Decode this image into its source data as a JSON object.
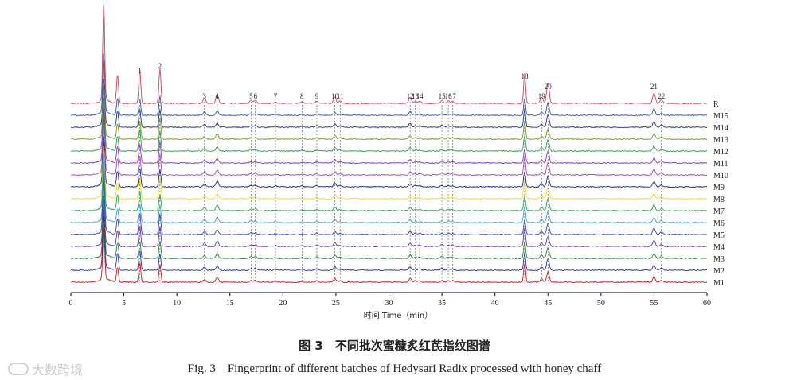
{
  "chart_data": {
    "type": "line",
    "subtype": "stacked chromatograms",
    "xlabel": "时间 Time（min）",
    "ylabel": "",
    "xlim": [
      0,
      60
    ],
    "xticks": [
      0,
      5,
      10,
      15,
      20,
      25,
      30,
      35,
      40,
      45,
      50,
      55,
      60
    ],
    "grid": false,
    "series": [
      {
        "name": "R",
        "color": "#d4405a"
      },
      {
        "name": "M15",
        "color": "#3355bb"
      },
      {
        "name": "M14",
        "color": "#223388"
      },
      {
        "name": "M13",
        "color": "#779922"
      },
      {
        "name": "M12",
        "color": "#2a9a55"
      },
      {
        "name": "M11",
        "color": "#8833cc"
      },
      {
        "name": "M10",
        "color": "#aa44bb"
      },
      {
        "name": "M9",
        "color": "#1a2a8a"
      },
      {
        "name": "M8",
        "color": "#eedd22"
      },
      {
        "name": "M7",
        "color": "#22aa44"
      },
      {
        "name": "M6",
        "color": "#33aacc"
      },
      {
        "name": "M5",
        "color": "#3344cc"
      },
      {
        "name": "M4",
        "color": "#6633aa"
      },
      {
        "name": "M3",
        "color": "#228833"
      },
      {
        "name": "M2",
        "color": "#2233aa"
      },
      {
        "name": "M1",
        "color": "#dd1111"
      }
    ],
    "peaks": [
      {
        "label": "1",
        "time": 6.5
      },
      {
        "label": "2",
        "time": 8.4
      },
      {
        "label": "3",
        "time": 12.6
      },
      {
        "label": "4",
        "time": 13.8
      },
      {
        "label": "5",
        "time": 17.0
      },
      {
        "label": "6",
        "time": 17.4
      },
      {
        "label": "7",
        "time": 19.3
      },
      {
        "label": "8",
        "time": 21.8
      },
      {
        "label": "9",
        "time": 23.2
      },
      {
        "label": "10",
        "time": 24.9
      },
      {
        "label": "11",
        "time": 25.4
      },
      {
        "label": "12",
        "time": 32.0
      },
      {
        "label": "13",
        "time": 32.5
      },
      {
        "label": "14",
        "time": 32.9
      },
      {
        "label": "15",
        "time": 35.0
      },
      {
        "label": "16",
        "time": 35.6
      },
      {
        "label": "17",
        "time": 36.0
      },
      {
        "label": "18",
        "time": 42.8
      },
      {
        "label": "19",
        "time": 44.4
      },
      {
        "label": "20",
        "time": 45.0
      },
      {
        "label": "21",
        "time": 55.0
      },
      {
        "label": "22",
        "time": 55.7
      }
    ],
    "reference_trace_peak_heights": [
      {
        "time": 3.1,
        "height": 123
      },
      {
        "time": 4.4,
        "height": 37
      },
      {
        "time": 6.5,
        "height": 44
      },
      {
        "time": 8.4,
        "height": 45
      },
      {
        "time": 12.6,
        "height": 7
      },
      {
        "time": 13.8,
        "height": 11
      },
      {
        "time": 17.0,
        "height": 4
      },
      {
        "time": 17.4,
        "height": 4
      },
      {
        "time": 19.3,
        "height": 2
      },
      {
        "time": 21.8,
        "height": 2
      },
      {
        "time": 23.2,
        "height": 3
      },
      {
        "time": 24.9,
        "height": 8
      },
      {
        "time": 25.4,
        "height": 3
      },
      {
        "time": 32.0,
        "height": 8
      },
      {
        "time": 32.5,
        "height": 3
      },
      {
        "time": 32.9,
        "height": 3
      },
      {
        "time": 35.0,
        "height": 4
      },
      {
        "time": 35.6,
        "height": 3
      },
      {
        "time": 36.0,
        "height": 3
      },
      {
        "time": 42.8,
        "height": 38
      },
      {
        "time": 44.4,
        "height": 8
      },
      {
        "time": 45.0,
        "height": 26
      },
      {
        "time": 55.0,
        "height": 13
      },
      {
        "time": 55.7,
        "height": 5
      }
    ]
  },
  "caption": {
    "cn": "图 3　不同批次蜜糠炙红芪指纹图谱",
    "en": "Fig. 3　Fingerprint of different batches of Hedysari Radix processed with honey chaff"
  },
  "watermark": {
    "text": "大数跨境"
  }
}
